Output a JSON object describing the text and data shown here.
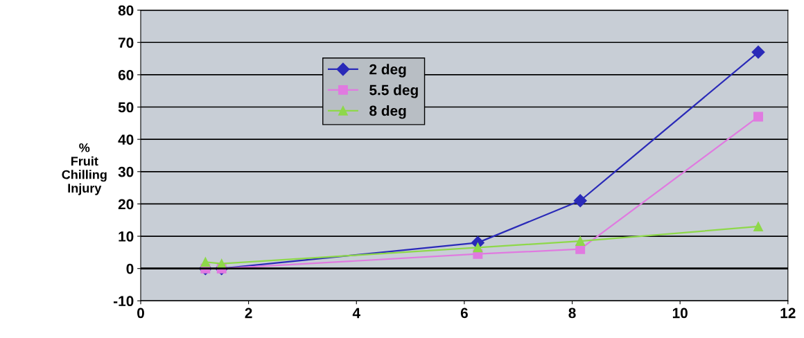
{
  "chart_data": {
    "type": "line",
    "ylabel": "%\nFruit\nChilling\nInjury",
    "x": [
      1.2,
      1.5,
      6.25,
      8.15,
      11.45
    ],
    "series": [
      {
        "name": "2 deg",
        "color": "#2a2ab8",
        "marker": "diamond",
        "values": [
          0,
          0,
          8,
          21,
          67
        ]
      },
      {
        "name": "5.5 deg",
        "color": "#e07ae0",
        "marker": "square",
        "values": [
          0,
          0,
          4.5,
          6,
          47
        ]
      },
      {
        "name": "8 deg",
        "color": "#8ed84a",
        "marker": "triangle",
        "values": [
          2,
          1.5,
          6.5,
          8.5,
          13
        ]
      }
    ],
    "xlim": [
      0,
      12
    ],
    "xticks": [
      0,
      2,
      4,
      6,
      8,
      10,
      12
    ],
    "ylim": [
      -10,
      80
    ],
    "yticks": [
      -10,
      0,
      10,
      20,
      30,
      40,
      50,
      60,
      70,
      80
    ],
    "grid": "y",
    "legend": "top",
    "line_style": "solid"
  }
}
